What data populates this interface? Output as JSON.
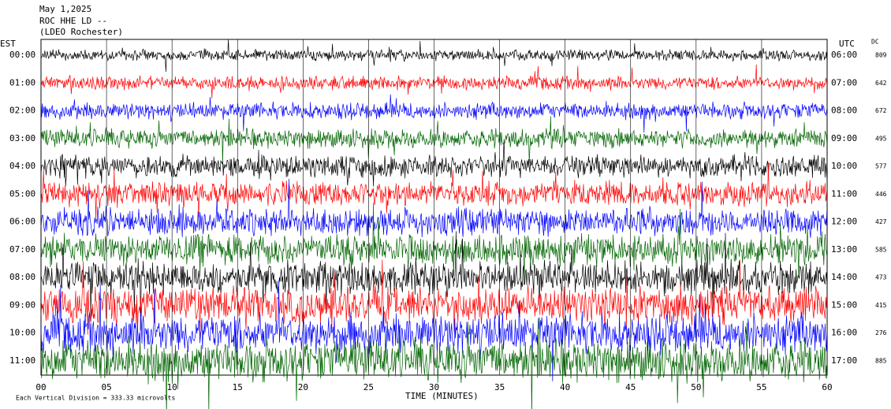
{
  "header": {
    "date": "May 1,2025",
    "station": "ROC HHE LD --",
    "site": "(LDEO Rochester)"
  },
  "left_zone": "EST",
  "right_zone": "UTC",
  "dc_heading": "DC",
  "trace_colors": [
    "#000000",
    "#ff0000",
    "#0000ff",
    "#006400"
  ],
  "rows": [
    {
      "est": "00:00",
      "utc": "06:00",
      "dc": 809
    },
    {
      "est": "01:00",
      "utc": "07:00",
      "dc": 642
    },
    {
      "est": "02:00",
      "utc": "08:00",
      "dc": 672
    },
    {
      "est": "03:00",
      "utc": "09:00",
      "dc": 495
    },
    {
      "est": "04:00",
      "utc": "10:00",
      "dc": 577
    },
    {
      "est": "05:00",
      "utc": "11:00",
      "dc": 446
    },
    {
      "est": "06:00",
      "utc": "12:00",
      "dc": 427
    },
    {
      "est": "07:00",
      "utc": "13:00",
      "dc": 585
    },
    {
      "est": "08:00",
      "utc": "14:00",
      "dc": 473
    },
    {
      "est": "09:00",
      "utc": "15:00",
      "dc": 415
    },
    {
      "est": "10:00",
      "utc": "16:00",
      "dc": 276
    },
    {
      "est": "11:00",
      "utc": "17:00",
      "dc": 885
    }
  ],
  "x_labels": [
    "00",
    "05",
    "10",
    "15",
    "20",
    "25",
    "30",
    "35",
    "40",
    "45",
    "50",
    "55",
    "60"
  ],
  "x_title": "TIME (MINUTES)",
  "footer": "Each Vertical Division = 333.33 microvolts"
}
